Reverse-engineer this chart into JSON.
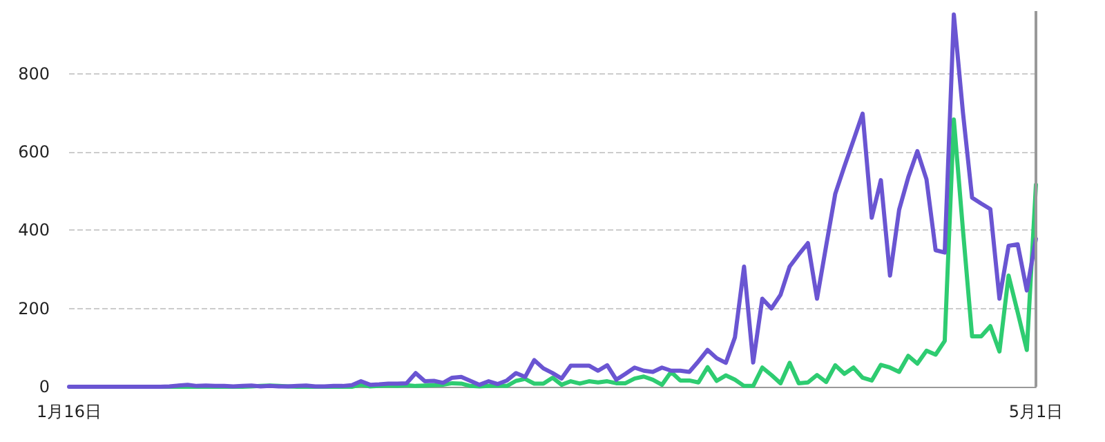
{
  "chart_data": {
    "type": "line",
    "categories": [
      "1月16日",
      null,
      null,
      null,
      null,
      null,
      null,
      null,
      null,
      null,
      null,
      null,
      null,
      null,
      null,
      null,
      null,
      null,
      null,
      null,
      null,
      null,
      null,
      null,
      null,
      null,
      null,
      null,
      null,
      null,
      null,
      null,
      null,
      null,
      null,
      null,
      null,
      null,
      null,
      null,
      null,
      null,
      null,
      null,
      null,
      null,
      null,
      null,
      null,
      null,
      null,
      null,
      null,
      null,
      null,
      null,
      null,
      null,
      null,
      null,
      null,
      null,
      null,
      null,
      null,
      null,
      null,
      null,
      null,
      null,
      null,
      null,
      null,
      null,
      null,
      null,
      null,
      null,
      null,
      null,
      null,
      null,
      null,
      null,
      null,
      null,
      null,
      null,
      null,
      null,
      null,
      null,
      null,
      null,
      null,
      null,
      null,
      null,
      null,
      null,
      null,
      null,
      null,
      null,
      null,
      null,
      "5月1日"
    ],
    "series": [
      {
        "color": "#6a55d2",
        "values": [
          0,
          0,
          0,
          0,
          0,
          0,
          0,
          0,
          0,
          0,
          0,
          1,
          3,
          5,
          2,
          3,
          2,
          2,
          1,
          2,
          3,
          1,
          2,
          1,
          1,
          2,
          3,
          1,
          1,
          2,
          2,
          4,
          14,
          5,
          6,
          8,
          8,
          9,
          35,
          14,
          15,
          10,
          23,
          25,
          15,
          5,
          14,
          7,
          16,
          35,
          25,
          68,
          47,
          35,
          21,
          54,
          54,
          54,
          41,
          55,
          18,
          33,
          49,
          41,
          38,
          49,
          41,
          41,
          38,
          65,
          94,
          73,
          61,
          126,
          307,
          62,
          225,
          200,
          235,
          307,
          338,
          367,
          225,
          360,
          493,
          563,
          630,
          698,
          432,
          528,
          284,
          452,
          535,
          602,
          530,
          349,
          343,
          951,
          700,
          483,
          468,
          454,
          225,
          360,
          364,
          246,
          378
        ]
      },
      {
        "color": "#2ecc71",
        "values": [
          null,
          null,
          null,
          null,
          null,
          null,
          null,
          null,
          null,
          null,
          0,
          0,
          0,
          0,
          0,
          0,
          0,
          0,
          0,
          0,
          1,
          2,
          3,
          2,
          1,
          0,
          0,
          0,
          0,
          0,
          0,
          0,
          5,
          1,
          2,
          3,
          2,
          4,
          2,
          3,
          4,
          5,
          9,
          8,
          2,
          1,
          2,
          3,
          2,
          15,
          20,
          8,
          8,
          23,
          5,
          14,
          8,
          14,
          11,
          14,
          9,
          9,
          21,
          26,
          18,
          5,
          38,
          16,
          16,
          11,
          50,
          15,
          29,
          18,
          2,
          2,
          49,
          30,
          9,
          61,
          9,
          11,
          30,
          12,
          55,
          33,
          49,
          23,
          16,
          56,
          49,
          38,
          79,
          59,
          92,
          82,
          117,
          683,
          400,
          129,
          129,
          155,
          90,
          284,
          190,
          94,
          516
        ]
      }
    ],
    "ylim": [
      0,
      960
    ],
    "yticks": [
      0,
      200,
      400,
      600,
      800
    ],
    "grid": "y",
    "marker": "none",
    "line_style": "solid",
    "ref_lines": [
      {
        "axis": "x",
        "value": "5月1日",
        "color": "#999999"
      }
    ]
  }
}
